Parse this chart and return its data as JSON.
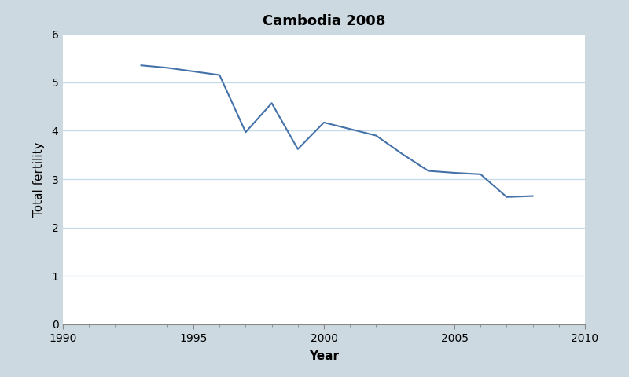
{
  "title": "Cambodia 2008",
  "xlabel": "Year",
  "ylabel": "Total fertility",
  "years": [
    1993,
    1994,
    1996,
    1997,
    1998,
    1999,
    2000,
    2002,
    2003,
    2004,
    2005,
    2006,
    2007,
    2008
  ],
  "fertility": [
    5.35,
    5.3,
    5.15,
    3.97,
    4.57,
    3.62,
    4.17,
    3.9,
    3.52,
    3.17,
    3.13,
    3.1,
    2.63,
    2.65
  ],
  "xlim": [
    1990,
    2010
  ],
  "ylim": [
    0,
    6
  ],
  "xticks": [
    1990,
    1995,
    2000,
    2005,
    2010
  ],
  "yticks": [
    0,
    1,
    2,
    3,
    4,
    5,
    6
  ],
  "line_color": "#4472a8",
  "line_width": 1.5,
  "background_color": "#cdd9e0",
  "plot_background": "#ffffff",
  "grid_color": "#c5dae8",
  "title_fontsize": 13,
  "label_fontsize": 11,
  "tick_fontsize": 10
}
